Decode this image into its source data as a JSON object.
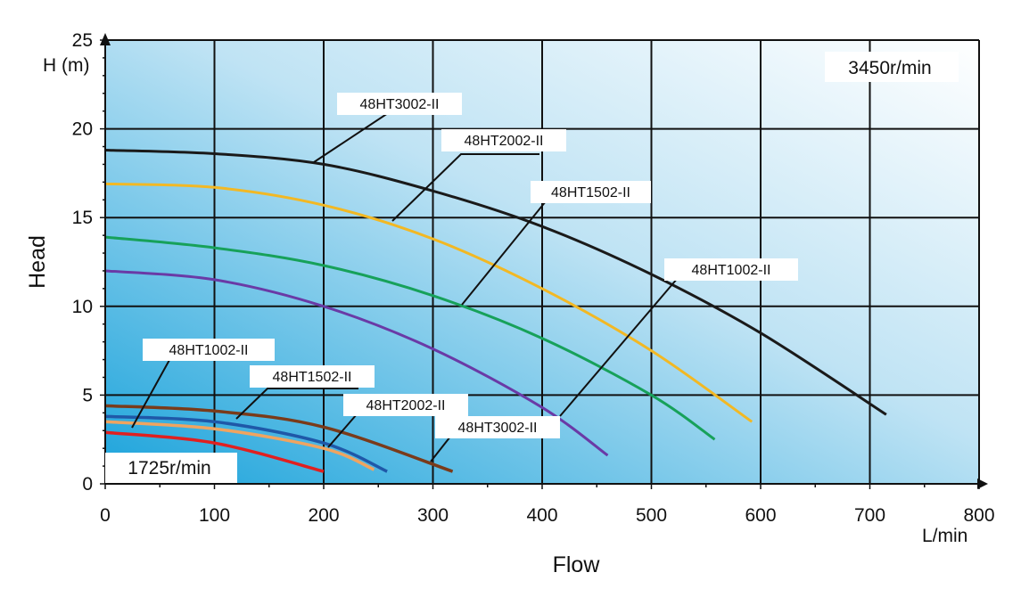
{
  "chart_data": {
    "type": "line",
    "xlabel": "Flow",
    "ylabel": "Head",
    "x_unit": "L/min",
    "y_unit": "H (m)",
    "xlim": [
      0,
      800
    ],
    "ylim": [
      0,
      25
    ],
    "x_ticks": [
      0,
      100,
      200,
      300,
      400,
      500,
      600,
      700,
      800
    ],
    "y_ticks": [
      0,
      5,
      10,
      15,
      20,
      25
    ],
    "grid": true,
    "speed_labels": {
      "high": "3450r/min",
      "low": "1725r/min"
    },
    "colors": {
      "grid": "#111111",
      "bg_dark": "#1fa6dc",
      "bg_light": "#ffffff"
    },
    "series": [
      {
        "name": "48HT3002-II",
        "speed": "3450r/min",
        "color": "#1a1a1a",
        "x": [
          0,
          100,
          200,
          300,
          400,
          500,
          600,
          715
        ],
        "y": [
          18.8,
          18.6,
          18.0,
          16.5,
          14.5,
          11.8,
          8.5,
          3.9
        ]
      },
      {
        "name": "48HT2002-II",
        "speed": "3450r/min",
        "color": "#f2b824",
        "x": [
          0,
          100,
          200,
          300,
          400,
          500,
          592
        ],
        "y": [
          16.9,
          16.7,
          15.7,
          13.8,
          11.0,
          7.5,
          3.5
        ]
      },
      {
        "name": "48HT1502-II",
        "speed": "3450r/min",
        "color": "#17a15a",
        "x": [
          0,
          100,
          200,
          300,
          400,
          500,
          558
        ],
        "y": [
          13.9,
          13.3,
          12.3,
          10.6,
          8.2,
          5.0,
          2.5
        ]
      },
      {
        "name": "48HT1002-II",
        "speed": "3450r/min",
        "color": "#6a3aa6",
        "x": [
          0,
          100,
          200,
          300,
          400,
          460
        ],
        "y": [
          12.0,
          11.5,
          10.0,
          7.6,
          4.3,
          1.6
        ]
      },
      {
        "name": "48HT3002-II",
        "speed": "1725r/min",
        "color": "#7a3b1a",
        "x": [
          0,
          100,
          200,
          318
        ],
        "y": [
          4.4,
          4.1,
          3.2,
          0.7
        ]
      },
      {
        "name": "48HT2002-II",
        "speed": "1725r/min",
        "color": "#f0a460",
        "x": [
          0,
          100,
          200,
          246
        ],
        "y": [
          3.5,
          3.1,
          2.0,
          0.8
        ]
      },
      {
        "name": "48HT1502-II",
        "speed": "1725r/min",
        "color": "#1f58a8",
        "x": [
          0,
          100,
          200,
          258
        ],
        "y": [
          3.8,
          3.5,
          2.3,
          0.7
        ]
      },
      {
        "name": "48HT1002-II",
        "speed": "1725r/min",
        "color": "#e02020",
        "x": [
          0,
          100,
          200
        ],
        "y": [
          2.9,
          2.3,
          0.7
        ]
      }
    ]
  }
}
